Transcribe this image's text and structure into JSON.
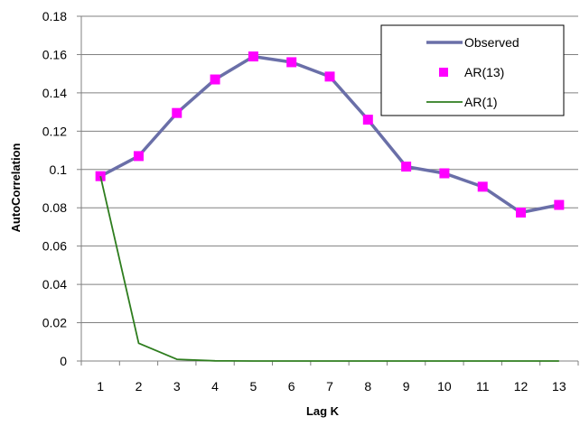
{
  "chart_data": {
    "type": "line",
    "categories": [
      1,
      2,
      3,
      4,
      5,
      6,
      7,
      8,
      9,
      10,
      11,
      12,
      13
    ],
    "xlabel": "Lag K",
    "ylabel": "AutoCorrelation",
    "ylim": [
      0,
      0.18
    ],
    "yticks": [
      "0",
      "0.02",
      "0.04",
      "0.06",
      "0.08",
      "0.1",
      "0.12",
      "0.14",
      "0.16",
      "0.18"
    ],
    "grid": true,
    "legend_position": "top-right",
    "series": [
      {
        "name": "Observed",
        "style": "line",
        "color": "#6a6fa8",
        "values": [
          0.0965,
          0.107,
          0.1295,
          0.147,
          0.159,
          0.156,
          0.1485,
          0.126,
          0.1015,
          0.098,
          0.091,
          0.0775,
          0.0815
        ]
      },
      {
        "name": "AR(13)",
        "style": "markers",
        "color": "#ff00ff",
        "values": [
          0.0965,
          0.107,
          0.1295,
          0.147,
          0.159,
          0.156,
          0.1485,
          0.126,
          0.1015,
          0.098,
          0.091,
          0.0775,
          0.0815
        ]
      },
      {
        "name": "AR(1)",
        "style": "line",
        "color": "#2e7d1e",
        "values": [
          0.0965,
          0.0093,
          0.0009,
          0.0001,
          0,
          0,
          0,
          0,
          0,
          0,
          0,
          0,
          0
        ]
      }
    ]
  }
}
